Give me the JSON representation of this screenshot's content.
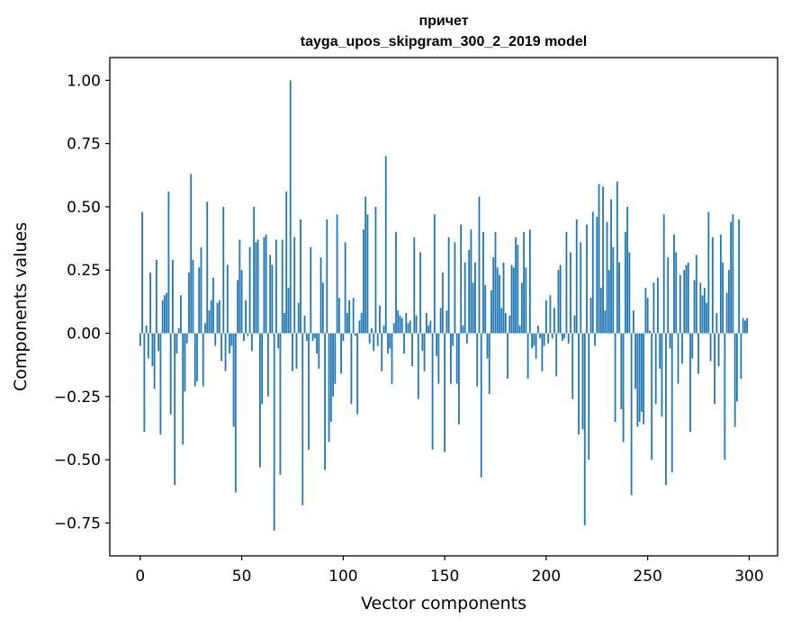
{
  "chart_data": {
    "type": "bar",
    "title_line1": "причет",
    "title_line2": "tayga_upos_skipgram_300_2_2019 model",
    "xlabel": "Vector components",
    "ylabel": "Components values",
    "xlim": [
      -15,
      314
    ],
    "ylim": [
      -0.88,
      1.09
    ],
    "xticks": [
      0,
      50,
      100,
      150,
      200,
      250,
      300
    ],
    "xtick_labels": [
      "0",
      "50",
      "100",
      "150",
      "200",
      "250",
      "300"
    ],
    "yticks": [
      1.0,
      0.75,
      0.5,
      0.25,
      0.0,
      -0.25,
      -0.5,
      -0.75
    ],
    "ytick_labels": [
      "1.00",
      "0.75",
      "0.50",
      "0.25",
      "0.00",
      "−0.25",
      "−0.50",
      "−0.75"
    ],
    "grid": false,
    "legend": "none",
    "bar_color": "#1f77b4",
    "values": [
      -0.05,
      0.48,
      -0.39,
      0.03,
      -0.1,
      0.24,
      -0.13,
      -0.22,
      0.29,
      -0.07,
      -0.4,
      0.13,
      0.15,
      0.16,
      0.56,
      -0.32,
      0.29,
      -0.6,
      -0.08,
      0.02,
      0.15,
      -0.44,
      -0.23,
      -0.04,
      0.24,
      0.63,
      0.29,
      -0.21,
      -0.19,
      0.26,
      0.34,
      -0.21,
      0.04,
      0.52,
      0.09,
      0.13,
      0.22,
      -0.05,
      0.12,
      0.13,
      -0.11,
      0.5,
      -0.15,
      0.27,
      -0.08,
      -0.05,
      -0.37,
      -0.63,
      0.21,
      0.37,
      0.25,
      -0.03,
      0.13,
      -0.01,
      0.34,
      -0.07,
      0.5,
      0.36,
      0.37,
      -0.53,
      -0.28,
      0.38,
      0.39,
      -0.25,
      0.31,
      0.27,
      -0.78,
      0.37,
      -0.06,
      -0.56,
      0.37,
      0.08,
      0.56,
      0.18,
      1.0,
      -0.15,
      0.38,
      -0.14,
      0.12,
      0.45,
      -0.68,
      0.07,
      -0.03,
      -0.46,
      0.34,
      -0.03,
      -0.02,
      -0.08,
      -0.14,
      0.3,
      0.2,
      -0.54,
      0.45,
      -0.43,
      -0.35,
      -0.25,
      -0.2,
      0.47,
      0.14,
      -0.16,
      -0.03,
      0.36,
      0.08,
      0.13,
      -0.28,
      0.14,
      -0.01,
      -0.32,
      0.05,
      0.08,
      0.41,
      0.54,
      0.47,
      -0.04,
      0.02,
      -0.07,
      0.5,
      -0.05,
      0.11,
      -0.15,
      0.03,
      0.7,
      -0.08,
      -0.06,
      -0.2,
      0.04,
      0.4,
      0.09,
      0.07,
      0.06,
      -0.08,
      0.08,
      0.04,
      0.05,
      -0.13,
      0.38,
      0.07,
      -0.26,
      0.32,
      -0.07,
      -0.15,
      0.08,
      0.03,
      0.05,
      -0.46,
      0.47,
      -0.09,
      -0.2,
      0.1,
      0.24,
      -0.47,
      0.09,
      0.38,
      -0.2,
      -0.05,
      0.36,
      -0.2,
      -0.36,
      0.43,
      0.03,
      0.28,
      -0.04,
      0.33,
      0.41,
      0.2,
      0.28,
      -0.21,
      0.54,
      -0.57,
      0.4,
      0.19,
      -0.1,
      -0.24,
      0.17,
      0.3,
      0.4,
      0.26,
      0.23,
      0.1,
      0.28,
      0.08,
      -0.18,
      0.07,
      0.27,
      0.26,
      0.38,
      0.35,
      0.03,
      0.2,
      0.4,
      0.26,
      -0.18,
      0.41,
      -0.06,
      -0.05,
      -0.1,
      0.03,
      -0.02,
      -0.15,
      -0.05,
      0.13,
      -0.04,
      0.15,
      -0.02,
      0.1,
      -0.17,
      0.25,
      0.27,
      -0.03,
      -0.02,
      0.4,
      -0.04,
      0.32,
      -0.26,
      0.07,
      0.45,
      -0.4,
      0.36,
      -0.38,
      -0.76,
      0.43,
      -0.5,
      0.14,
      0.48,
      -0.05,
      0.46,
      0.59,
      0.18,
      0.58,
      0.09,
      0.44,
      0.25,
      0.53,
      0.34,
      -0.35,
      0.6,
      0.28,
      -0.3,
      -0.43,
      0.4,
      0.5,
      0.32,
      -0.64,
      0.09,
      -0.22,
      -0.37,
      -0.35,
      -0.31,
      -0.36,
      0.18,
      0.14,
      0.01,
      -0.5,
      0.2,
      -0.28,
      0.22,
      -0.14,
      -0.33,
      0.47,
      -0.6,
      0.3,
      -0.06,
      -0.55,
      0.39,
      0.32,
      -0.2,
      0.23,
      -0.12,
      0.25,
      0.27,
      0.28,
      -0.39,
      -0.1,
      0.21,
      0.31,
      -0.16,
      0.2,
      0.15,
      0.18,
      0.12,
      0.48,
      -0.11,
      0.38,
      -0.28,
      0.08,
      -0.13,
      0.39,
      0.28,
      -0.5,
      0.16,
      0.25,
      0.44,
      0.47,
      -0.37,
      -0.27,
      0.45,
      -0.18,
      0.06,
      0.05,
      0.06
    ]
  }
}
